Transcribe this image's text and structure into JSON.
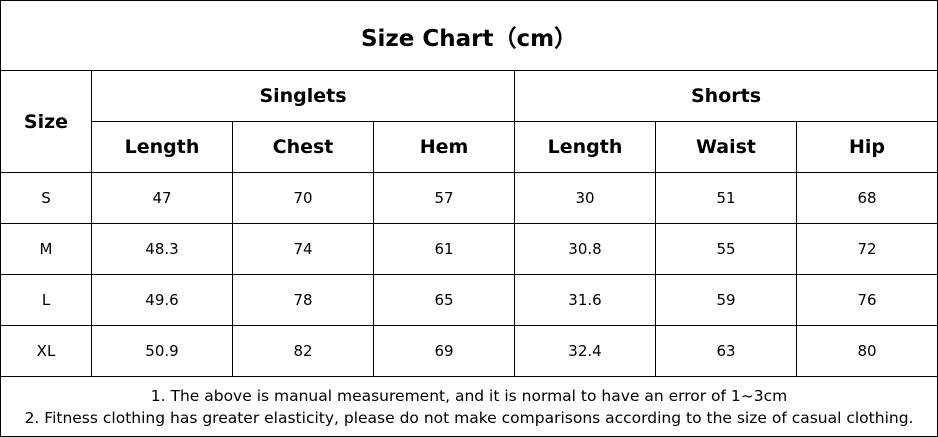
{
  "title": "Size Chart（cm）",
  "table": {
    "size_header": "Size",
    "groups": [
      "Singlets",
      "Shorts"
    ],
    "columns": [
      "Length",
      "Chest",
      "Hem",
      "Length",
      "Waist",
      "Hip"
    ],
    "rows": [
      [
        "S",
        47,
        70,
        57,
        30,
        51,
        68
      ],
      [
        "M",
        48.3,
        74,
        61,
        30.8,
        55,
        72
      ],
      [
        "L",
        49.6,
        78,
        65,
        31.6,
        59,
        76
      ],
      [
        "XL",
        50.9,
        82,
        69,
        32.4,
        63,
        80
      ]
    ]
  },
  "notes": [
    "1. The above is manual measurement, and it is normal to have an error of 1~3cm",
    "2. Fitness clothing has greater elasticity, please do not make comparisons according to the size of casual clothing."
  ]
}
